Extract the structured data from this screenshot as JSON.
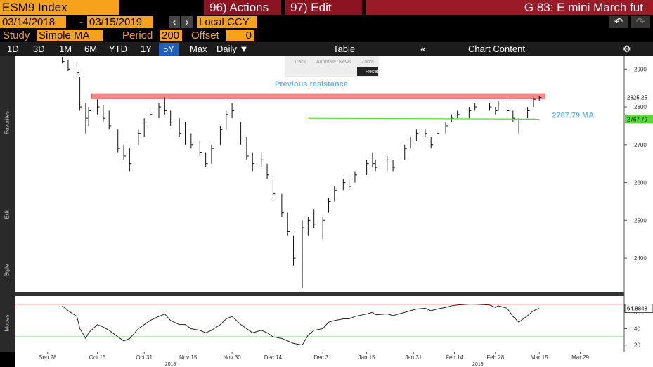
{
  "toolbar": {
    "security": "ESM9 Index",
    "actions": "96) Actions",
    "edit": "97) Edit",
    "title": "G 83: E mini March fut",
    "start_date": "03/14/2018",
    "date_sep": "-",
    "end_date": "03/15/2019",
    "currency": "Local CCY",
    "study_label": "Study",
    "study": "Simple MA",
    "period_label": "Period",
    "period": 200,
    "offset_label": "Offset",
    "offset": 0,
    "ranges": [
      "1D",
      "3D",
      "1M",
      "6M",
      "YTD",
      "1Y",
      "5Y",
      "Max"
    ],
    "active_range": "5Y",
    "frequency": "Daily ▼",
    "table": "Table",
    "chart_content": "Chart Content",
    "mini_tools": [
      "Track",
      "Annotate",
      "News",
      "Zoom"
    ],
    "reset": "Reset",
    "side_labels": [
      "Favorites",
      "Edit",
      "Style",
      "Modes"
    ]
  },
  "chart_data": [
    {
      "type": "hlc",
      "color": "#111111",
      "x": [
        "2018-10-03",
        "2018-10-05",
        "2018-10-08",
        "2018-10-09",
        "2018-10-11",
        "2018-10-12",
        "2018-10-15",
        "2018-10-17",
        "2018-10-19",
        "2018-10-22",
        "2018-10-24",
        "2018-10-26",
        "2018-10-29",
        "2018-10-31",
        "2018-11-02",
        "2018-11-05",
        "2018-11-07",
        "2018-11-09",
        "2018-11-12",
        "2018-11-14",
        "2018-11-16",
        "2018-11-19",
        "2018-11-21",
        "2018-11-23",
        "2018-11-26",
        "2018-11-28",
        "2018-11-30",
        "2018-12-03",
        "2018-12-05",
        "2018-12-07",
        "2018-12-10",
        "2018-12-12",
        "2018-12-14",
        "2018-12-17",
        "2018-12-19",
        "2018-12-21",
        "2018-12-24",
        "2018-12-26",
        "2018-12-28",
        "2018-12-31",
        "2019-01-02",
        "2019-01-04",
        "2019-01-07",
        "2019-01-09",
        "2019-01-11",
        "2019-01-15",
        "2019-01-17",
        "2019-01-18",
        "2019-01-22",
        "2019-01-24",
        "2019-01-28",
        "2019-01-30",
        "2019-02-01",
        "2019-02-04",
        "2019-02-06",
        "2019-02-08",
        "2019-02-11",
        "2019-02-13",
        "2019-02-15",
        "2019-02-19",
        "2019-02-21",
        "2019-02-26",
        "2019-02-28",
        "2019-03-01",
        "2019-03-04",
        "2019-03-06",
        "2019-03-08",
        "2019-03-11",
        "2019-03-13",
        "2019-03-15"
      ],
      "high": [
        2932,
        2925,
        2915,
        2880,
        2810,
        2800,
        2820,
        2805,
        2790,
        2740,
        2700,
        2690,
        2740,
        2770,
        2790,
        2810,
        2825,
        2790,
        2770,
        2760,
        2730,
        2710,
        2680,
        2700,
        2750,
        2790,
        2810,
        2760,
        2720,
        2680,
        2680,
        2650,
        2610,
        2570,
        2520,
        2460,
        2500,
        2510,
        2530,
        2510,
        2560,
        2590,
        2610,
        2610,
        2630,
        2660,
        2680,
        2660,
        2670,
        2660,
        2700,
        2720,
        2740,
        2740,
        2720,
        2740,
        2760,
        2780,
        2790,
        2800,
        2810,
        2810,
        2800,
        2815,
        2820,
        2790,
        2770,
        2800,
        2825,
        2830
      ],
      "low": [
        2915,
        2895,
        2880,
        2790,
        2730,
        2750,
        2780,
        2760,
        2740,
        2680,
        2660,
        2630,
        2700,
        2720,
        2750,
        2770,
        2780,
        2750,
        2720,
        2700,
        2690,
        2670,
        2640,
        2650,
        2700,
        2740,
        2770,
        2700,
        2660,
        2630,
        2640,
        2610,
        2560,
        2510,
        2460,
        2380,
        2320,
        2460,
        2480,
        2450,
        2520,
        2550,
        2580,
        2580,
        2600,
        2620,
        2640,
        2630,
        2630,
        2630,
        2660,
        2690,
        2710,
        2720,
        2690,
        2710,
        2730,
        2760,
        2770,
        2770,
        2790,
        2790,
        2780,
        2790,
        2780,
        2760,
        2730,
        2770,
        2800,
        2815
      ],
      "close": [
        2920,
        2900,
        2890,
        2800,
        2770,
        2790,
        2800,
        2770,
        2750,
        2690,
        2670,
        2650,
        2730,
        2760,
        2780,
        2800,
        2790,
        2760,
        2730,
        2710,
        2700,
        2680,
        2650,
        2690,
        2740,
        2780,
        2790,
        2710,
        2670,
        2650,
        2660,
        2620,
        2570,
        2520,
        2470,
        2400,
        2480,
        2500,
        2490,
        2500,
        2550,
        2580,
        2600,
        2590,
        2620,
        2650,
        2650,
        2640,
        2660,
        2640,
        2690,
        2710,
        2730,
        2730,
        2700,
        2730,
        2750,
        2770,
        2780,
        2790,
        2800,
        2800,
        2790,
        2810,
        2790,
        2770,
        2760,
        2790,
        2820,
        2825.25
      ],
      "xlim": [
        "2018-09-17",
        "2019-04-13"
      ],
      "xticks": [
        {
          "value": "2018-09-28",
          "label": "Sep 28"
        },
        {
          "value": "2018-10-15",
          "label": "Oct 15"
        },
        {
          "value": "2018-10-31",
          "label": "Oct 31"
        },
        {
          "value": "2018-11-15",
          "label": "Nov 15"
        },
        {
          "value": "2018-11-30",
          "label": "Nov 30"
        },
        {
          "value": "2018-12-14",
          "label": "Dec 14"
        },
        {
          "value": "2018-12-31",
          "label": "Dec 31"
        },
        {
          "value": "2019-01-15",
          "label": "Jan 15"
        },
        {
          "value": "2019-01-31",
          "label": "Jan 31"
        },
        {
          "value": "2019-02-14",
          "label": "Feb 14"
        },
        {
          "value": "2019-02-28",
          "label": "Feb 28"
        },
        {
          "value": "2019-03-15",
          "label": "Mar 15"
        },
        {
          "value": "2019-03-29",
          "label": "Mar 29"
        }
      ],
      "year_labels": [
        {
          "value": "2018-11-09",
          "label": "2018"
        },
        {
          "value": "2019-02-22",
          "label": "2019"
        }
      ],
      "ylim": [
        2309,
        2934
      ],
      "yticks": [
        2400,
        2500,
        2600,
        2700,
        2800,
        2900
      ],
      "ma": {
        "name": "2767.79 MA",
        "color": "#55dd33",
        "x": [
          "2018-12-26",
          "2019-03-15"
        ],
        "values": [
          2770,
          2767.79
        ]
      },
      "resistance": {
        "text": "Previous resistance",
        "range": [
          2822,
          2835
        ],
        "x": [
          "2018-10-13",
          "2019-03-17"
        ],
        "color": "#f28a8a"
      }
    },
    {
      "type": "line",
      "color": "#222222",
      "values": [
        68,
        62,
        55,
        40,
        28,
        35,
        45,
        42,
        38,
        30,
        25,
        28,
        40,
        45,
        50,
        55,
        58,
        50,
        45,
        45,
        40,
        38,
        35,
        38,
        45,
        52,
        55,
        45,
        40,
        35,
        38,
        35,
        30,
        28,
        25,
        22,
        20,
        32,
        38,
        40,
        48,
        50,
        52,
        52,
        55,
        58,
        60,
        57,
        58,
        56,
        60,
        62,
        64,
        65,
        62,
        64,
        66,
        68,
        69,
        70,
        70,
        69,
        66,
        68,
        65,
        55,
        48,
        56,
        62,
        64.8848
      ],
      "ylim": [
        12,
        80
      ],
      "yticks": [
        20,
        40,
        60
      ],
      "levels": [
        {
          "value": 70,
          "color": "#e04848"
        },
        {
          "value": 30,
          "color": "#44cc44"
        }
      ]
    }
  ]
}
